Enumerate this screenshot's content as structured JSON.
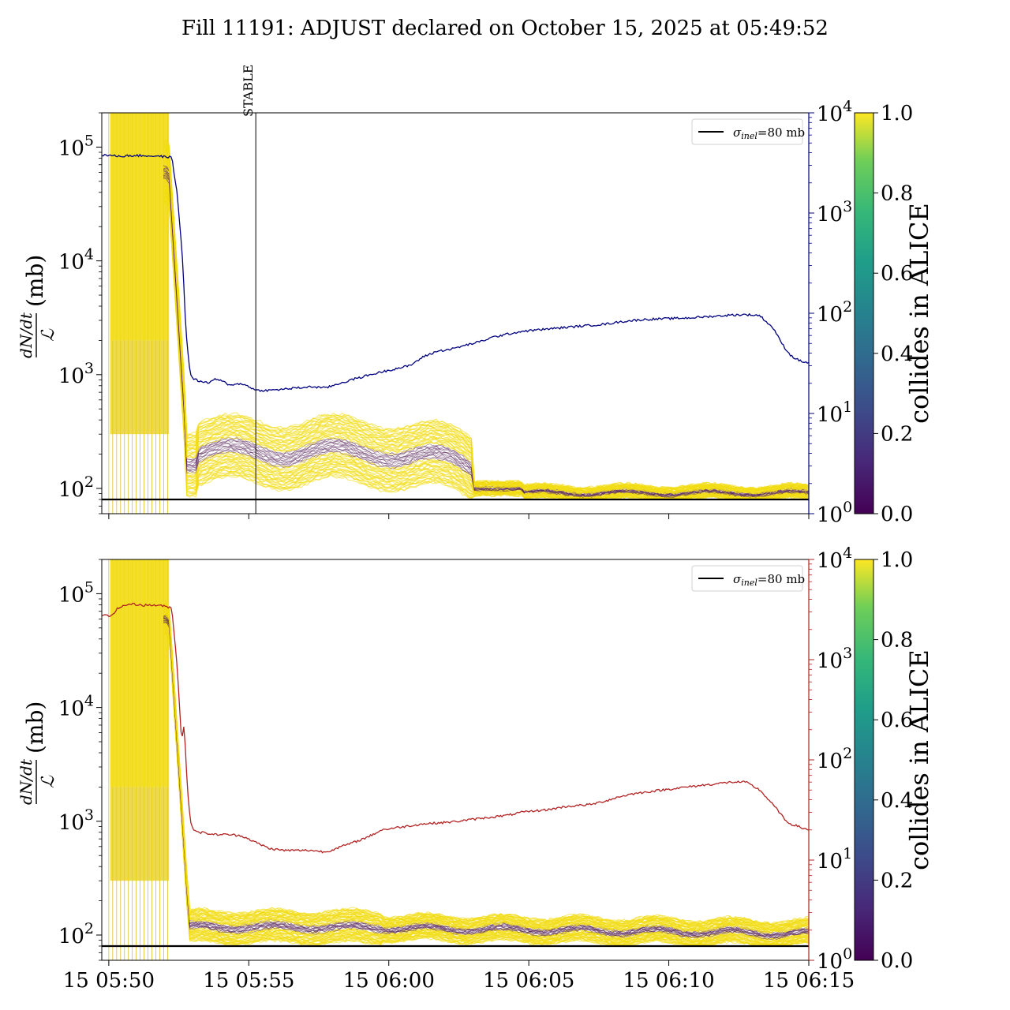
{
  "title": "Fill 11191: ADJUST declared on October 15, 2025 at 05:49:52",
  "x_ticks": [
    "15 05:50",
    "15 05:55",
    "15 06:00",
    "15 06:05",
    "15 06:10",
    "15 06:15"
  ],
  "left_ylabel": {
    "main": "dN/dt",
    "den": "ℒ",
    "unit": "(mb)"
  },
  "left_yticks": [
    {
      "base": "10",
      "exp": "2"
    },
    {
      "base": "10",
      "exp": "3"
    },
    {
      "base": "10",
      "exp": "4"
    },
    {
      "base": "10",
      "exp": "5"
    }
  ],
  "right_yticks": [
    {
      "base": "10",
      "exp": "0"
    },
    {
      "base": "10",
      "exp": "1"
    },
    {
      "base": "10",
      "exp": "2"
    },
    {
      "base": "10",
      "exp": "3"
    },
    {
      "base": "10",
      "exp": "4"
    }
  ],
  "legend_label": {
    "sym": "σ",
    "sub": "inel",
    "rest": "=80 mb"
  },
  "stable_label": "STABLE",
  "colorbar": {
    "label": "collides in ALICE",
    "ticks": [
      "0.0",
      "0.2",
      "0.4",
      "0.6",
      "0.8",
      "1.0"
    ]
  },
  "colors": {
    "top_series": "#00007f",
    "bottom_series": "#b22222",
    "bundle_high": "#f2dc10",
    "bundle_low": "#5b2a5f",
    "sigma_line": "#000000"
  },
  "chart_data": [
    {
      "type": "line",
      "panel": "top",
      "x_range": [
        "05:49:45",
        "06:15:00"
      ],
      "ylim_left": [
        60,
        200000
      ],
      "yscale_left": "log",
      "ylim_right": [
        1,
        10000
      ],
      "yscale_right": "log",
      "right_axis_color": "#00007f",
      "sigma_inel_mb": 80,
      "vertical_marker": {
        "label": "STABLE",
        "time": "05:55:15"
      },
      "legend_position": "upper right",
      "series": [
        {
          "axis": "right",
          "color": "#00007f",
          "x_min": [
            0.0,
            0.6,
            1.2,
            2.0,
            2.5,
            2.7,
            2.9,
            3.0,
            3.15,
            3.3,
            3.5,
            3.8,
            4.0,
            4.3,
            4.6,
            4.8,
            5.0,
            5.2,
            5.5,
            6.0,
            6.5,
            7.0,
            7.5,
            8.0,
            8.5,
            9.0,
            9.5,
            10.0,
            10.5,
            11.0,
            11.5,
            12.0,
            12.5,
            13.0,
            13.5,
            14.0,
            14.5,
            15.0,
            15.5,
            16.0,
            16.5,
            17.0,
            17.5,
            18.0,
            18.5,
            19.0,
            19.5,
            20.0,
            20.5,
            21.0,
            21.5,
            22.0,
            22.5,
            23.0,
            23.5,
            24.0,
            24.2,
            24.4,
            24.6,
            24.8,
            25.0,
            25.25
          ],
          "y": [
            3800,
            3700,
            3750,
            3700,
            3600,
            1500,
            300,
            70,
            25,
            22,
            21,
            20,
            22,
            21,
            19,
            20,
            19.5,
            19,
            17,
            17,
            17.5,
            18,
            18.5,
            18,
            20,
            22,
            24,
            26,
            28,
            30,
            37,
            42,
            44,
            48,
            52,
            58,
            62,
            66,
            68,
            70,
            72,
            74,
            76,
            78,
            82,
            85,
            87,
            88,
            89,
            90,
            92,
            94,
            96,
            97,
            95,
            70,
            55,
            45,
            38,
            35,
            33,
            32
          ]
        }
      ]
    },
    {
      "type": "line",
      "panel": "bottom",
      "x_range": [
        "05:49:45",
        "06:15:00"
      ],
      "ylim_left": [
        60,
        200000
      ],
      "yscale_left": "log",
      "ylim_right": [
        1,
        10000
      ],
      "yscale_right": "log",
      "right_axis_color": "#b22222",
      "sigma_inel_mb": 80,
      "legend_position": "upper right",
      "series": [
        {
          "axis": "right",
          "color": "#b22222",
          "x_min": [
            0.0,
            0.3,
            0.6,
            1.0,
            1.5,
            2.0,
            2.5,
            2.7,
            2.85,
            2.95,
            3.0,
            3.05,
            3.1,
            3.2,
            3.3,
            3.5,
            4.0,
            4.5,
            5.0,
            5.5,
            6.0,
            6.5,
            7.0,
            7.5,
            8.0,
            8.5,
            9.0,
            9.5,
            10.0,
            10.5,
            11.0,
            11.5,
            12.0,
            12.5,
            13.0,
            13.5,
            14.0,
            14.5,
            15.0,
            15.5,
            16.0,
            16.5,
            17.0,
            17.5,
            18.0,
            18.5,
            19.0,
            19.5,
            20.0,
            20.5,
            21.0,
            21.5,
            22.0,
            22.5,
            23.0,
            23.5,
            24.0,
            24.2,
            24.4,
            24.6,
            24.8,
            25.0,
            25.25
          ],
          "y": [
            2800,
            2700,
            3300,
            3600,
            3500,
            3500,
            3300,
            800,
            150,
            240,
            100,
            60,
            35,
            22,
            20,
            19,
            18,
            18,
            17.5,
            15,
            13,
            12.5,
            12.5,
            12.5,
            12,
            13.5,
            15,
            17,
            20,
            21,
            22,
            23,
            23.5,
            24,
            25,
            26,
            27,
            28,
            30,
            31,
            32,
            34,
            35,
            36,
            39,
            43,
            46,
            48,
            50,
            52,
            54,
            56,
            58,
            60,
            60,
            50,
            35,
            30,
            25,
            23,
            22,
            21,
            20
          ]
        }
      ]
    }
  ]
}
